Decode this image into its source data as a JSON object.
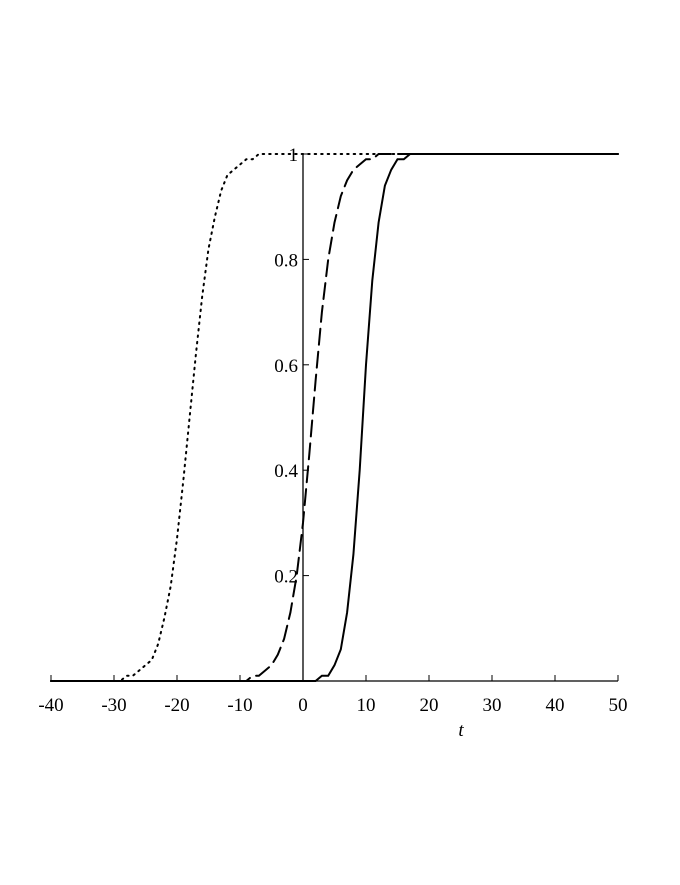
{
  "chart_data": {
    "type": "line",
    "x_label": "t",
    "x": [
      -40,
      -39,
      -38,
      -37,
      -36,
      -35,
      -34,
      -33,
      -32,
      -31,
      -30,
      -29,
      -28,
      -27,
      -26,
      -25,
      -24,
      -23,
      -22,
      -21,
      -20,
      -19,
      -18,
      -17,
      -16,
      -15,
      -14,
      -13,
      -12,
      -11,
      -10,
      -9,
      -8,
      -7,
      -6,
      -5,
      -4,
      -3,
      -2,
      -1,
      0,
      1,
      2,
      3,
      4,
      5,
      6,
      7,
      8,
      9,
      10,
      11,
      12,
      13,
      14,
      15,
      16,
      17,
      18,
      19,
      20,
      21,
      22,
      23,
      24,
      25,
      26,
      27,
      28,
      29,
      30,
      31,
      32,
      33,
      34,
      35,
      36,
      37,
      38,
      39,
      40,
      41,
      42,
      43,
      44,
      45,
      46,
      47,
      48,
      49,
      50
    ],
    "series": [
      {
        "color": "#000000",
        "dash": "dotted",
        "values": [
          0,
          0,
          0,
          0,
          0,
          0,
          0,
          0,
          0,
          0,
          0,
          0,
          0.01,
          0.01,
          0.02,
          0.03,
          0.04,
          0.07,
          0.12,
          0.18,
          0.27,
          0.38,
          0.5,
          0.62,
          0.73,
          0.82,
          0.88,
          0.93,
          0.96,
          0.97,
          0.98,
          0.99,
          0.99,
          1,
          1,
          1,
          1,
          1,
          1,
          1,
          1,
          1,
          1,
          1,
          1,
          1,
          1,
          1,
          1,
          1,
          1,
          1,
          1,
          1,
          1,
          1,
          1,
          1,
          1,
          1,
          1,
          1,
          1,
          1,
          1,
          1,
          1,
          1,
          1,
          1,
          1,
          1,
          1,
          1,
          1,
          1,
          1,
          1,
          1,
          1,
          1,
          1,
          1,
          1,
          1,
          1,
          1,
          1,
          1,
          1,
          1
        ]
      },
      {
        "color": "#000000",
        "dash": "dashed",
        "values": [
          0,
          0,
          0,
          0,
          0,
          0,
          0,
          0,
          0,
          0,
          0,
          0,
          0,
          0,
          0,
          0,
          0,
          0,
          0,
          0,
          0,
          0,
          0,
          0,
          0,
          0,
          0,
          0,
          0,
          0,
          0,
          0,
          0.01,
          0.01,
          0.02,
          0.03,
          0.05,
          0.08,
          0.13,
          0.2,
          0.3,
          0.43,
          0.57,
          0.7,
          0.8,
          0.87,
          0.92,
          0.95,
          0.97,
          0.98,
          0.99,
          0.99,
          1,
          1,
          1,
          1,
          1,
          1,
          1,
          1,
          1,
          1,
          1,
          1,
          1,
          1,
          1,
          1,
          1,
          1,
          1,
          1,
          1,
          1,
          1,
          1,
          1,
          1,
          1,
          1,
          1,
          1,
          1,
          1,
          1,
          1,
          1,
          1,
          1,
          1,
          1
        ]
      },
      {
        "color": "#000000",
        "dash": "solid",
        "values": [
          0,
          0,
          0,
          0,
          0,
          0,
          0,
          0,
          0,
          0,
          0,
          0,
          0,
          0,
          0,
          0,
          0,
          0,
          0,
          0,
          0,
          0,
          0,
          0,
          0,
          0,
          0,
          0,
          0,
          0,
          0,
          0,
          0,
          0,
          0,
          0,
          0,
          0,
          0,
          0,
          0,
          0,
          0,
          0.01,
          0.01,
          0.03,
          0.06,
          0.13,
          0.24,
          0.4,
          0.6,
          0.76,
          0.87,
          0.94,
          0.97,
          0.99,
          0.99,
          1,
          1,
          1,
          1,
          1,
          1,
          1,
          1,
          1,
          1,
          1,
          1,
          1,
          1,
          1,
          1,
          1,
          1,
          1,
          1,
          1,
          1,
          1,
          1,
          1,
          1,
          1,
          1,
          1,
          1,
          1,
          1,
          1,
          1
        ]
      }
    ],
    "xlim": [
      -40,
      50
    ],
    "xticks": [
      -40,
      -30,
      -20,
      -10,
      0,
      10,
      20,
      30,
      40,
      50
    ],
    "ylim": [
      0,
      1
    ],
    "yticks": [
      0.2,
      0.4,
      0.6,
      0.8,
      1
    ]
  }
}
